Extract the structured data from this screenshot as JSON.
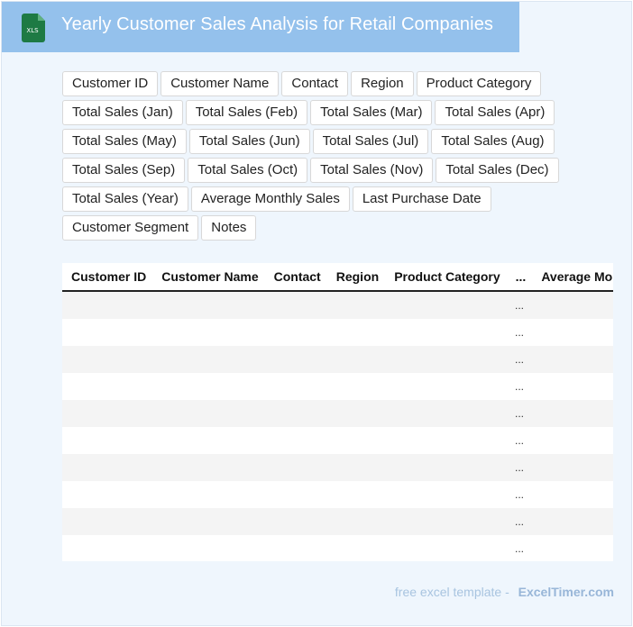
{
  "header": {
    "title": "Yearly Customer Sales Analysis for Retail Companies",
    "icon_label": "XLS",
    "icon_color": "#1e7a44",
    "banner_color": "#94c1ec"
  },
  "field_chips": [
    "Customer ID",
    "Customer Name",
    "Contact",
    "Region",
    "Product Category",
    "Total Sales (Jan)",
    "Total Sales (Feb)",
    "Total Sales (Mar)",
    "Total Sales (Apr)",
    "Total Sales (May)",
    "Total Sales (Jun)",
    "Total Sales (Jul)",
    "Total Sales (Aug)",
    "Total Sales (Sep)",
    "Total Sales (Oct)",
    "Total Sales (Nov)",
    "Total Sales (Dec)",
    "Total Sales (Year)",
    "Average Monthly Sales",
    "Last Purchase Date",
    "Customer Segment",
    "Notes"
  ],
  "table": {
    "columns": [
      "Customer ID",
      "Customer Name",
      "Contact",
      "Region",
      "Product Category",
      "...",
      "Average Monthly Sales"
    ],
    "ellipsis_cell": "...",
    "row_count": 10
  },
  "footer": {
    "text": "free excel template -",
    "brand": "ExcelTimer.com"
  }
}
